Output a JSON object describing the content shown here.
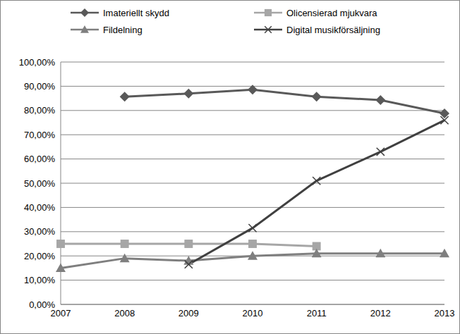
{
  "chart_data": {
    "type": "line",
    "categories": [
      "2007",
      "2008",
      "2009",
      "2010",
      "2011",
      "2012",
      "2013"
    ],
    "series": [
      {
        "name": "Imateriellt skydd",
        "color": "#595959",
        "marker": "diamond",
        "values": [
          null,
          85.7,
          87,
          88.6,
          85.7,
          84.3,
          78.8
        ]
      },
      {
        "name": "Olicensierad mjukvara",
        "color": "#a6a6a6",
        "marker": "square",
        "values": [
          25,
          25,
          25,
          25,
          24,
          null,
          null
        ]
      },
      {
        "name": "Fildelning",
        "color": "#7f7f7f",
        "marker": "triangle",
        "values": [
          15,
          19,
          18,
          20,
          21,
          21,
          21
        ]
      },
      {
        "name": "Digital musikförsäljning",
        "color": "#404040",
        "marker": "x",
        "values": [
          null,
          null,
          16.5,
          31.5,
          51,
          63,
          76
        ]
      }
    ],
    "ylim": [
      0,
      100
    ],
    "yticks": [
      {
        "value": 0,
        "label": "0,00%"
      },
      {
        "value": 10,
        "label": "10,00%"
      },
      {
        "value": 20,
        "label": "20,00%"
      },
      {
        "value": 30,
        "label": "30,00%"
      },
      {
        "value": 40,
        "label": "40,00%"
      },
      {
        "value": 50,
        "label": "50,00%"
      },
      {
        "value": 60,
        "label": "60,00%"
      },
      {
        "value": 70,
        "label": "70,00%"
      },
      {
        "value": 80,
        "label": "80,00%"
      },
      {
        "value": 90,
        "label": "90,00%"
      },
      {
        "value": 100,
        "label": "100,00%"
      }
    ],
    "grid": true,
    "legend": "top"
  }
}
